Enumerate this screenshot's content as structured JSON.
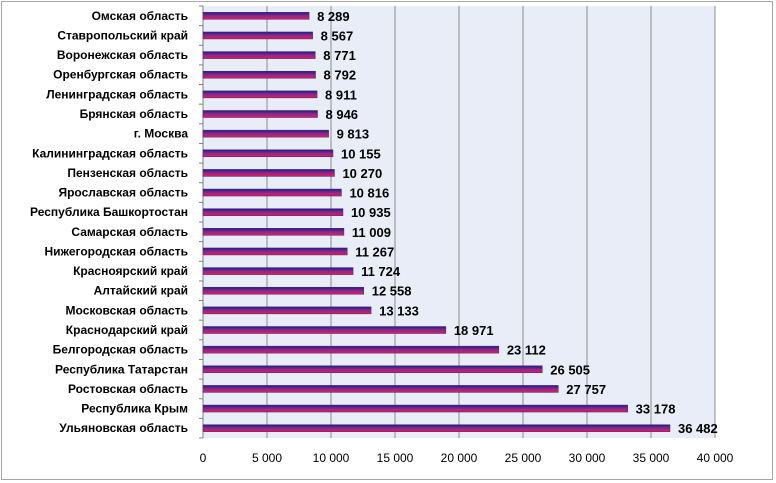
{
  "chart_data": {
    "type": "bar",
    "orientation": "horizontal",
    "categories": [
      "Омская область",
      "Ставропольский край",
      "Воронежская область",
      "Оренбургская область",
      "Ленинградская область",
      "Брянская область",
      "г. Москва",
      "Калининградская область",
      "Пензенская область",
      "Ярославская область",
      "Республика Башкортостан",
      "Самарская область",
      "Нижегородская область",
      "Красноярский край",
      "Алтайский край",
      "Московская область",
      "Краснодарский край",
      "Белгородская область",
      "Республика Татарстан",
      "Ростовская область",
      "Республика Крым",
      "Ульяновская область"
    ],
    "values": [
      8289,
      8567,
      8771,
      8792,
      8911,
      8946,
      9813,
      10155,
      10270,
      10816,
      10935,
      11009,
      11267,
      11724,
      12558,
      13133,
      18971,
      23112,
      26505,
      27757,
      33178,
      36482
    ],
    "value_labels": [
      "8 289",
      "8 567",
      "8 771",
      "8 792",
      "8 911",
      "8 946",
      "9 813",
      "10 155",
      "10 270",
      "10 816",
      "10 935",
      "11 009",
      "11 267",
      "11 724",
      "12 558",
      "13 133",
      "18 971",
      "23 112",
      "26 505",
      "27 757",
      "33 178",
      "36 482"
    ],
    "x_ticks": [
      0,
      5000,
      10000,
      15000,
      20000,
      25000,
      30000,
      35000,
      40000
    ],
    "x_tick_labels": [
      "0",
      "5 000",
      "10 000",
      "15 000",
      "20 000",
      "25 000",
      "30 000",
      "35 000",
      "40 000"
    ],
    "xlim": [
      0,
      40000
    ],
    "grid": "vertical",
    "legend": "none",
    "colors": {
      "bar_top": "#1f1a8c",
      "bar_mid": "#8a2a8a",
      "bar_bottom": "#e8185a",
      "plot_bg": "#e9edf7",
      "grid": "#8c8c8c",
      "axis": "#7f7f7f",
      "frame": "#a6a6a6"
    }
  }
}
